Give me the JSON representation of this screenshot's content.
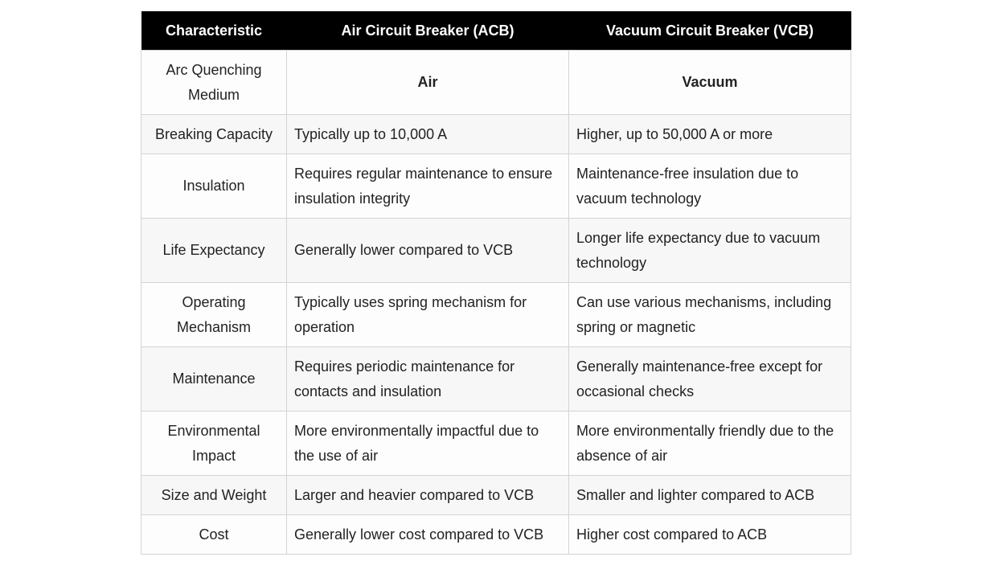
{
  "headers": [
    "Characteristic",
    "Air Circuit Breaker (ACB)",
    "Vacuum Circuit Breaker (VCB)"
  ],
  "rows": [
    {
      "characteristic": "Arc Quenching Medium",
      "acb": "Air",
      "vcb": "Vacuum"
    },
    {
      "characteristic": "Breaking Capacity",
      "acb": "Typically up to 10,000 A",
      "vcb": "Higher, up to 50,000 A or more"
    },
    {
      "characteristic": "Insulation",
      "acb": "Requires regular maintenance to ensure insulation integrity",
      "vcb": "Maintenance-free insulation due to vacuum technology"
    },
    {
      "characteristic": "Life Expectancy",
      "acb": "Generally lower compared to VCB",
      "vcb": "Longer life expectancy due to vacuum technology"
    },
    {
      "characteristic": "Operating Mechanism",
      "acb": "Typically uses spring mechanism for operation",
      "vcb": "Can use various mechanisms, including spring or magnetic"
    },
    {
      "characteristic": "Maintenance",
      "acb": "Requires periodic maintenance for contacts and insulation",
      "vcb": "Generally maintenance-free except for occasional checks"
    },
    {
      "characteristic": "Environmental Impact",
      "acb": "More environmentally impactful due to the use of air",
      "vcb": "More environmentally friendly due to the absence of air"
    },
    {
      "characteristic": "Size and Weight",
      "acb": "Larger and heavier compared to VCB",
      "vcb": "Smaller and lighter compared to ACB"
    },
    {
      "characteristic": "Cost",
      "acb": "Generally lower cost compared to VCB",
      "vcb": "Higher cost compared to ACB"
    }
  ]
}
